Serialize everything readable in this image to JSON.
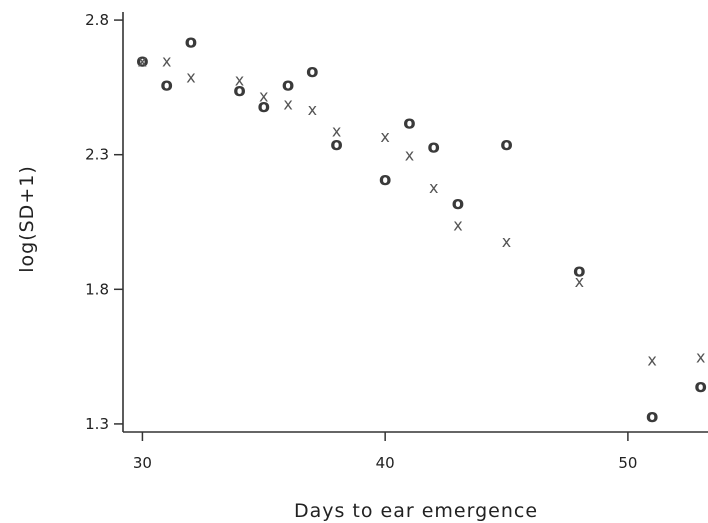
{
  "chart_data": {
    "type": "scatter",
    "xlabel": "Days to ear emergence",
    "ylabel": "log(SD+1)",
    "xlim": [
      29.2,
      53.3
    ],
    "ylim": [
      1.27,
      2.83
    ],
    "xticks": [
      30,
      40,
      50
    ],
    "xtick_labels": [
      "30",
      "40",
      "50"
    ],
    "yticks": [
      1.3,
      1.8,
      2.3,
      2.8
    ],
    "ytick_labels": [
      "1.3",
      "1.8",
      "2.3",
      "2.8"
    ],
    "grid": false,
    "legend": "none",
    "series": [
      {
        "marker": "O",
        "symbol": "o",
        "x": [
          30,
          31,
          32,
          34,
          35,
          36,
          37,
          38,
          40,
          41,
          42,
          43,
          45,
          48,
          51,
          53
        ],
        "y": [
          2.65,
          2.56,
          2.72,
          2.54,
          2.48,
          2.56,
          2.61,
          2.34,
          2.21,
          2.42,
          2.33,
          2.12,
          2.34,
          1.87,
          1.33,
          1.44
        ]
      },
      {
        "marker": "X",
        "symbol": "x",
        "x": [
          30,
          31,
          32,
          34,
          35,
          36,
          37,
          38,
          40,
          41,
          42,
          43,
          45,
          48,
          51,
          53
        ],
        "y": [
          2.65,
          2.65,
          2.59,
          2.58,
          2.52,
          2.49,
          2.47,
          2.39,
          2.37,
          2.3,
          2.18,
          2.04,
          1.98,
          1.83,
          1.54,
          1.55
        ]
      }
    ]
  }
}
